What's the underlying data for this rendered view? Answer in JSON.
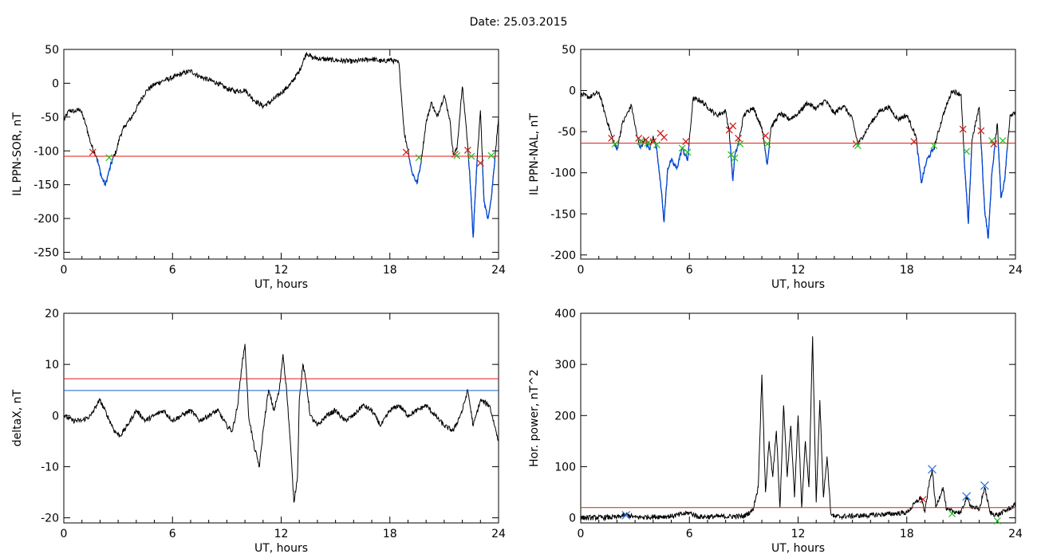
{
  "title": "Date:  25.03.2015",
  "colors": {
    "curve": "#000000",
    "below": "#0047d6",
    "threshold_red": "#e01818",
    "threshold_blue": "#1a5fd0",
    "marker_start": "#d01818",
    "marker_end": "#22c022",
    "marker_peak": "#2a6fe0"
  },
  "chart_data": [
    {
      "id": "p1",
      "type": "line",
      "xlabel": "UT, hours",
      "ylabel": "IL PPN-SOR, nT",
      "xlim": [
        0,
        24
      ],
      "ylim": [
        -260,
        50
      ],
      "xticks": [
        0,
        6,
        12,
        18,
        24
      ],
      "yticks": [
        -250,
        -200,
        -150,
        -100,
        -50,
        0,
        50
      ],
      "grid": false,
      "threshold": -108,
      "points": [
        [
          0,
          -55
        ],
        [
          0.3,
          -40
        ],
        [
          0.6,
          -42
        ],
        [
          0.9,
          -38
        ],
        [
          1.2,
          -60
        ],
        [
          1.5,
          -90
        ],
        [
          1.8,
          -108
        ],
        [
          2.1,
          -140
        ],
        [
          2.3,
          -150
        ],
        [
          2.5,
          -130
        ],
        [
          2.7,
          -112
        ],
        [
          2.9,
          -100
        ],
        [
          3.1,
          -78
        ],
        [
          3.4,
          -62
        ],
        [
          3.7,
          -52
        ],
        [
          4.0,
          -38
        ],
        [
          4.3,
          -22
        ],
        [
          4.6,
          -10
        ],
        [
          5.0,
          -2
        ],
        [
          5.5,
          4
        ],
        [
          6.0,
          8
        ],
        [
          6.5,
          14
        ],
        [
          7.0,
          18
        ],
        [
          7.5,
          10
        ],
        [
          8.0,
          5
        ],
        [
          8.5,
          0
        ],
        [
          9.0,
          -8
        ],
        [
          9.5,
          -12
        ],
        [
          10.0,
          -10
        ],
        [
          10.5,
          -25
        ],
        [
          11.0,
          -34
        ],
        [
          11.5,
          -26
        ],
        [
          12.0,
          -14
        ],
        [
          12.5,
          -2
        ],
        [
          13.0,
          18
        ],
        [
          13.4,
          45
        ],
        [
          13.7,
          38
        ],
        [
          14.2,
          36
        ],
        [
          15.0,
          34
        ],
        [
          16.0,
          32
        ],
        [
          17.0,
          36
        ],
        [
          17.6,
          32
        ],
        [
          18.0,
          35
        ],
        [
          18.5,
          30
        ],
        [
          18.8,
          -75
        ],
        [
          19.0,
          -98
        ],
        [
          19.2,
          -130
        ],
        [
          19.5,
          -148
        ],
        [
          19.7,
          -120
        ],
        [
          20.0,
          -58
        ],
        [
          20.3,
          -28
        ],
        [
          20.6,
          -50
        ],
        [
          21.0,
          -18
        ],
        [
          21.3,
          -52
        ],
        [
          21.5,
          -105
        ],
        [
          21.7,
          -98
        ],
        [
          22.0,
          -5
        ],
        [
          22.2,
          -60
        ],
        [
          22.4,
          -130
        ],
        [
          22.6,
          -228
        ],
        [
          22.8,
          -120
        ],
        [
          23.0,
          -40
        ],
        [
          23.1,
          -108
        ],
        [
          23.2,
          -175
        ],
        [
          23.4,
          -200
        ],
        [
          23.6,
          -170
        ],
        [
          23.8,
          -110
        ],
        [
          24.0,
          -50
        ]
      ],
      "markers": [
        {
          "x": 1.6,
          "y": -102,
          "kind": "start"
        },
        {
          "x": 2.5,
          "y": -110,
          "kind": "end"
        },
        {
          "x": 18.9,
          "y": -102,
          "kind": "start"
        },
        {
          "x": 19.6,
          "y": -110,
          "kind": "end"
        },
        {
          "x": 21.6,
          "y": -105,
          "kind": "start"
        },
        {
          "x": 21.7,
          "y": -107,
          "kind": "end"
        },
        {
          "x": 22.3,
          "y": -99,
          "kind": "start"
        },
        {
          "x": 22.5,
          "y": -108,
          "kind": "end"
        },
        {
          "x": 23.0,
          "y": -118,
          "kind": "start"
        },
        {
          "x": 23.6,
          "y": -107,
          "kind": "end"
        }
      ]
    },
    {
      "id": "p2",
      "type": "line",
      "xlabel": "UT, hours",
      "ylabel": "IL PPN-NAL, nT",
      "xlim": [
        0,
        24
      ],
      "ylim": [
        -205,
        50
      ],
      "xticks": [
        0,
        6,
        12,
        18,
        24
      ],
      "yticks": [
        -200,
        -150,
        -100,
        -50,
        0,
        50
      ],
      "grid": false,
      "threshold": -64,
      "points": [
        [
          0,
          -5
        ],
        [
          0.5,
          -8
        ],
        [
          1.0,
          -2
        ],
        [
          1.5,
          -40
        ],
        [
          1.8,
          -62
        ],
        [
          2.0,
          -72
        ],
        [
          2.3,
          -40
        ],
        [
          2.8,
          -18
        ],
        [
          3.1,
          -55
        ],
        [
          3.3,
          -70
        ],
        [
          3.5,
          -60
        ],
        [
          3.8,
          -72
        ],
        [
          4.0,
          -55
        ],
        [
          4.2,
          -72
        ],
        [
          4.4,
          -110
        ],
        [
          4.6,
          -160
        ],
        [
          4.8,
          -95
        ],
        [
          5.0,
          -85
        ],
        [
          5.3,
          -95
        ],
        [
          5.6,
          -70
        ],
        [
          5.9,
          -85
        ],
        [
          6.2,
          -10
        ],
        [
          6.6,
          -12
        ],
        [
          7.0,
          -20
        ],
        [
          7.5,
          -30
        ],
        [
          8.0,
          -25
        ],
        [
          8.2,
          -50
        ],
        [
          8.4,
          -110
        ],
        [
          8.5,
          -80
        ],
        [
          8.7,
          -65
        ],
        [
          9.0,
          -30
        ],
        [
          9.5,
          -20
        ],
        [
          10.0,
          -45
        ],
        [
          10.3,
          -90
        ],
        [
          10.5,
          -45
        ],
        [
          11.0,
          -28
        ],
        [
          11.5,
          -35
        ],
        [
          12.0,
          -28
        ],
        [
          12.5,
          -15
        ],
        [
          13.0,
          -22
        ],
        [
          13.5,
          -12
        ],
        [
          14.0,
          -28
        ],
        [
          14.5,
          -18
        ],
        [
          15.0,
          -35
        ],
        [
          15.3,
          -65
        ],
        [
          15.6,
          -55
        ],
        [
          16.0,
          -40
        ],
        [
          16.5,
          -25
        ],
        [
          17.0,
          -20
        ],
        [
          17.5,
          -35
        ],
        [
          18.0,
          -30
        ],
        [
          18.5,
          -55
        ],
        [
          18.8,
          -112
        ],
        [
          19.1,
          -85
        ],
        [
          19.5,
          -70
        ],
        [
          20.0,
          -30
        ],
        [
          20.5,
          0
        ],
        [
          21.0,
          -5
        ],
        [
          21.2,
          -95
        ],
        [
          21.4,
          -162
        ],
        [
          21.6,
          -60
        ],
        [
          22.0,
          -20
        ],
        [
          22.3,
          -145
        ],
        [
          22.5,
          -180
        ],
        [
          22.7,
          -100
        ],
        [
          23.0,
          -40
        ],
        [
          23.2,
          -130
        ],
        [
          23.4,
          -110
        ],
        [
          23.7,
          -30
        ],
        [
          24.0,
          -25
        ]
      ],
      "markers": [
        {
          "x": 1.7,
          "y": -58,
          "kind": "start"
        },
        {
          "x": 1.9,
          "y": -65,
          "kind": "end"
        },
        {
          "x": 3.2,
          "y": -58,
          "kind": "start"
        },
        {
          "x": 3.3,
          "y": -62,
          "kind": "end"
        },
        {
          "x": 3.6,
          "y": -60,
          "kind": "start"
        },
        {
          "x": 3.7,
          "y": -64,
          "kind": "end"
        },
        {
          "x": 4.0,
          "y": -62,
          "kind": "start"
        },
        {
          "x": 4.2,
          "y": -66,
          "kind": "end"
        },
        {
          "x": 4.4,
          "y": -52,
          "kind": "start"
        },
        {
          "x": 4.6,
          "y": -57,
          "kind": "start"
        },
        {
          "x": 5.6,
          "y": -70,
          "kind": "end"
        },
        {
          "x": 5.8,
          "y": -62,
          "kind": "start"
        },
        {
          "x": 5.9,
          "y": -75,
          "kind": "end"
        },
        {
          "x": 8.2,
          "y": -48,
          "kind": "start"
        },
        {
          "x": 8.3,
          "y": -78,
          "kind": "end"
        },
        {
          "x": 8.4,
          "y": -43,
          "kind": "start"
        },
        {
          "x": 8.5,
          "y": -82,
          "kind": "end"
        },
        {
          "x": 8.7,
          "y": -58,
          "kind": "start"
        },
        {
          "x": 8.8,
          "y": -65,
          "kind": "end"
        },
        {
          "x": 10.2,
          "y": -55,
          "kind": "start"
        },
        {
          "x": 10.3,
          "y": -65,
          "kind": "end"
        },
        {
          "x": 15.2,
          "y": -65,
          "kind": "start"
        },
        {
          "x": 15.3,
          "y": -67,
          "kind": "end"
        },
        {
          "x": 18.4,
          "y": -62,
          "kind": "start"
        },
        {
          "x": 19.5,
          "y": -67,
          "kind": "end"
        },
        {
          "x": 21.1,
          "y": -47,
          "kind": "start"
        },
        {
          "x": 21.3,
          "y": -74,
          "kind": "end"
        },
        {
          "x": 22.1,
          "y": -49,
          "kind": "start"
        },
        {
          "x": 22.7,
          "y": -61,
          "kind": "end"
        },
        {
          "x": 22.8,
          "y": -65,
          "kind": "start"
        },
        {
          "x": 23.3,
          "y": -61,
          "kind": "end"
        }
      ]
    },
    {
      "id": "p3",
      "type": "line",
      "xlabel": "UT, hours",
      "ylabel": "deltaX, nT",
      "xlim": [
        0,
        24
      ],
      "ylim": [
        -21,
        20
      ],
      "xticks": [
        0,
        6,
        12,
        18,
        24
      ],
      "yticks": [
        -20,
        -10,
        0,
        10,
        20
      ],
      "grid": false,
      "thresholds": [
        {
          "value": 7.2,
          "color": "red"
        },
        {
          "value": 4.9,
          "color": "blue"
        }
      ],
      "points": [
        [
          0,
          0
        ],
        [
          0.5,
          -1
        ],
        [
          1.0,
          -1
        ],
        [
          1.5,
          0
        ],
        [
          1.8,
          2
        ],
        [
          2.0,
          3
        ],
        [
          2.4,
          0
        ],
        [
          2.8,
          -3
        ],
        [
          3.1,
          -4
        ],
        [
          3.5,
          -2
        ],
        [
          4.0,
          1
        ],
        [
          4.5,
          -1
        ],
        [
          5.0,
          0
        ],
        [
          5.5,
          1
        ],
        [
          6.0,
          -1
        ],
        [
          6.5,
          0
        ],
        [
          7.0,
          1
        ],
        [
          7.5,
          -1
        ],
        [
          8.0,
          0
        ],
        [
          8.5,
          1
        ],
        [
          9.0,
          -2
        ],
        [
          9.3,
          -3
        ],
        [
          9.6,
          2
        ],
        [
          9.8,
          9
        ],
        [
          10.0,
          14
        ],
        [
          10.2,
          0
        ],
        [
          10.5,
          -6
        ],
        [
          10.8,
          -10
        ],
        [
          11.0,
          -3
        ],
        [
          11.3,
          5
        ],
        [
          11.6,
          1
        ],
        [
          11.9,
          5
        ],
        [
          12.1,
          12
        ],
        [
          12.3,
          5
        ],
        [
          12.5,
          -5
        ],
        [
          12.7,
          -17
        ],
        [
          12.9,
          -12
        ],
        [
          13.0,
          3
        ],
        [
          13.2,
          10
        ],
        [
          13.4,
          6
        ],
        [
          13.6,
          0
        ],
        [
          14.0,
          -2
        ],
        [
          14.5,
          0
        ],
        [
          15.0,
          1
        ],
        [
          15.5,
          -1
        ],
        [
          16.0,
          0
        ],
        [
          16.5,
          2
        ],
        [
          17.0,
          1
        ],
        [
          17.5,
          -2
        ],
        [
          18.0,
          1
        ],
        [
          18.5,
          2
        ],
        [
          19.0,
          0
        ],
        [
          19.5,
          1
        ],
        [
          20.0,
          2
        ],
        [
          20.5,
          0
        ],
        [
          21.0,
          -2
        ],
        [
          21.5,
          -3
        ],
        [
          22.0,
          1
        ],
        [
          22.3,
          5
        ],
        [
          22.6,
          -2
        ],
        [
          23.0,
          3
        ],
        [
          23.5,
          2
        ],
        [
          24.0,
          -5
        ]
      ]
    },
    {
      "id": "p4",
      "type": "line",
      "xlabel": "UT, hours",
      "ylabel": "Hor. power, nT^2",
      "xlim": [
        0,
        24
      ],
      "ylim": [
        -10,
        400
      ],
      "xticks": [
        0,
        6,
        12,
        18,
        24
      ],
      "yticks": [
        0,
        100,
        200,
        300,
        400
      ],
      "grid": false,
      "threshold": 20,
      "points": [
        [
          0,
          0
        ],
        [
          2.0,
          1
        ],
        [
          2.5,
          6
        ],
        [
          3.0,
          1
        ],
        [
          5.0,
          3
        ],
        [
          6.0,
          10
        ],
        [
          6.5,
          2
        ],
        [
          9.0,
          3
        ],
        [
          9.5,
          15
        ],
        [
          9.8,
          60
        ],
        [
          10.0,
          280
        ],
        [
          10.2,
          50
        ],
        [
          10.4,
          150
        ],
        [
          10.6,
          80
        ],
        [
          10.8,
          170
        ],
        [
          11.0,
          20
        ],
        [
          11.2,
          220
        ],
        [
          11.4,
          80
        ],
        [
          11.6,
          180
        ],
        [
          11.8,
          40
        ],
        [
          12.0,
          200
        ],
        [
          12.2,
          20
        ],
        [
          12.4,
          150
        ],
        [
          12.6,
          60
        ],
        [
          12.8,
          355
        ],
        [
          13.0,
          30
        ],
        [
          13.2,
          230
        ],
        [
          13.4,
          40
        ],
        [
          13.6,
          120
        ],
        [
          13.8,
          10
        ],
        [
          14.0,
          2
        ],
        [
          16.0,
          5
        ],
        [
          18.0,
          10
        ],
        [
          18.5,
          30
        ],
        [
          18.8,
          40
        ],
        [
          19.0,
          10
        ],
        [
          19.2,
          60
        ],
        [
          19.4,
          95
        ],
        [
          19.6,
          20
        ],
        [
          20.0,
          60
        ],
        [
          20.2,
          15
        ],
        [
          21.0,
          10
        ],
        [
          21.3,
          40
        ],
        [
          21.5,
          25
        ],
        [
          22.0,
          15
        ],
        [
          22.3,
          60
        ],
        [
          22.6,
          10
        ],
        [
          23.0,
          5
        ],
        [
          24.0,
          25
        ]
      ],
      "markers": [
        {
          "x": 2.5,
          "y": 5,
          "kind": "peak"
        },
        {
          "x": 19.4,
          "y": 95,
          "kind": "peak"
        },
        {
          "x": 21.3,
          "y": 42,
          "kind": "peak"
        },
        {
          "x": 22.3,
          "y": 63,
          "kind": "peak"
        },
        {
          "x": 18.9,
          "y": 36,
          "kind": "start"
        },
        {
          "x": 20.5,
          "y": 8,
          "kind": "end"
        },
        {
          "x": 23.0,
          "y": -6,
          "kind": "end"
        }
      ]
    }
  ]
}
